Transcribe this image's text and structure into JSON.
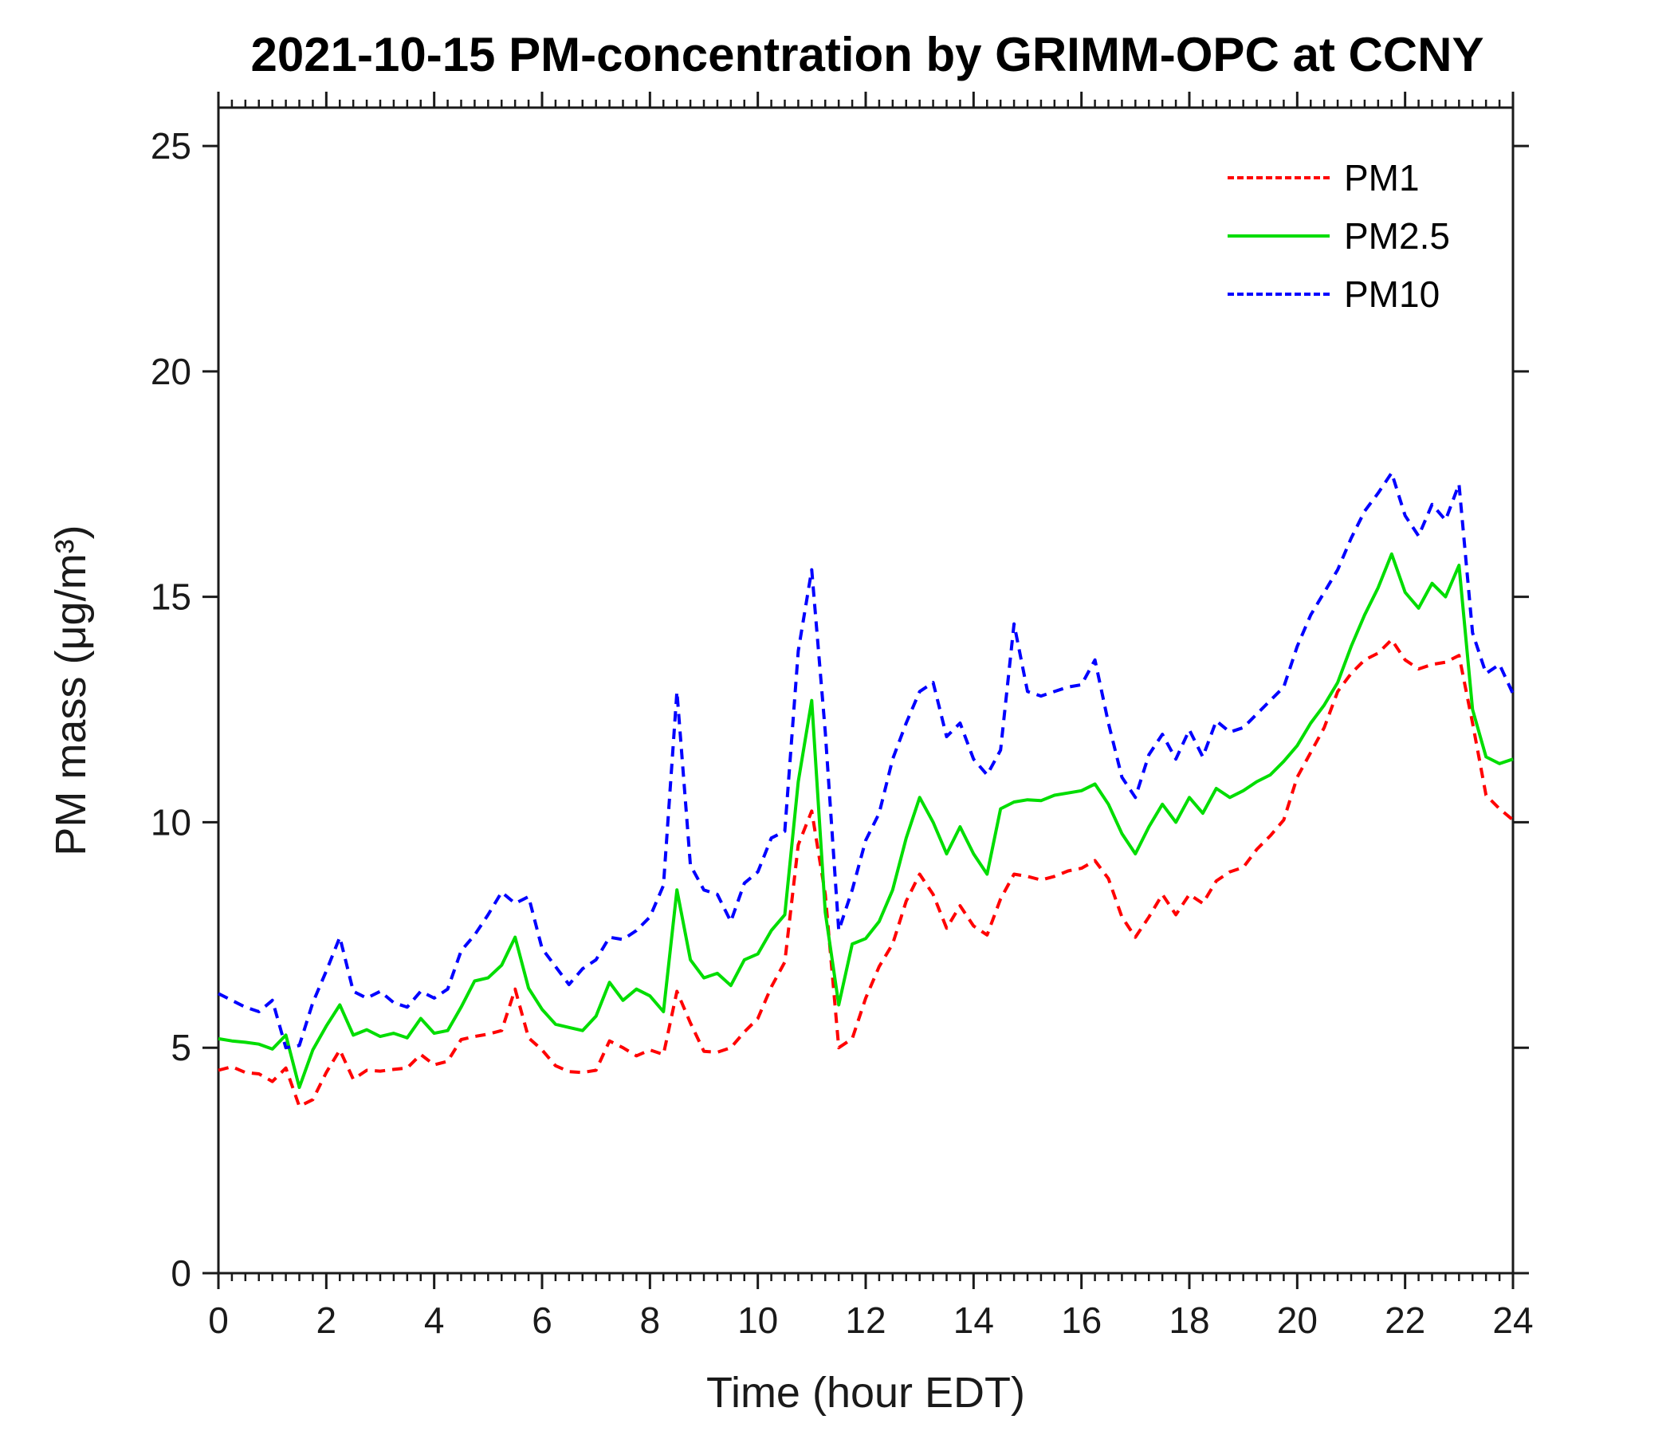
{
  "chart_data": {
    "type": "line",
    "title": "2021-10-15 PM-concentration by GRIMM-OPC at CCNY",
    "xlabel": "Time (hour EDT)",
    "ylabel": "PM mass (μg/m³)",
    "xlim": [
      0,
      24
    ],
    "ylim": [
      0,
      25.85
    ],
    "xticks": [
      0,
      2,
      4,
      6,
      8,
      10,
      12,
      14,
      16,
      18,
      20,
      22,
      24
    ],
    "yticks": [
      0,
      5,
      10,
      15,
      20,
      25
    ],
    "x_minor_tick_step": 0.25,
    "y_minor_ticks": false,
    "grid": false,
    "legend_position": "northeast",
    "background_color": "#ffffff",
    "axis_color": "#1a1a1a",
    "x_start": 0,
    "x_step": 0.25,
    "x_unit": "hour",
    "y_unit": "μg/m³",
    "series": [
      {
        "name": "PM1",
        "color": "#ff0000",
        "style": "dashed",
        "values": [
          4.5,
          4.58,
          4.45,
          4.42,
          4.25,
          4.55,
          3.7,
          3.85,
          4.45,
          4.95,
          4.3,
          4.5,
          4.48,
          4.52,
          4.55,
          4.85,
          4.62,
          4.7,
          5.18,
          5.25,
          5.3,
          5.38,
          6.3,
          5.22,
          4.95,
          4.6,
          4.47,
          4.45,
          4.5,
          5.15,
          5.0,
          4.82,
          4.95,
          4.85,
          6.25,
          5.55,
          4.92,
          4.9,
          5.0,
          5.35,
          5.65,
          6.35,
          6.9,
          9.5,
          10.25,
          8.4,
          5.0,
          5.2,
          6.1,
          6.8,
          7.3,
          8.25,
          8.85,
          8.4,
          7.65,
          8.15,
          7.7,
          7.5,
          8.3,
          8.85,
          8.8,
          8.72,
          8.8,
          8.92,
          8.98,
          9.15,
          8.75,
          7.9,
          7.45,
          7.9,
          8.4,
          7.95,
          8.4,
          8.2,
          8.7,
          8.9,
          9.0,
          9.4,
          9.7,
          10.05,
          11.0,
          11.55,
          12.1,
          12.9,
          13.3,
          13.6,
          13.75,
          14.05,
          13.6,
          13.4,
          13.5,
          13.55,
          13.7,
          12.2,
          10.6,
          10.3,
          10.05
        ]
      },
      {
        "name": "PM2.5",
        "color": "#00dd00",
        "style": "solid",
        "values": [
          5.2,
          5.15,
          5.12,
          5.08,
          4.97,
          5.28,
          4.12,
          4.95,
          5.48,
          5.95,
          5.28,
          5.4,
          5.25,
          5.32,
          5.22,
          5.65,
          5.32,
          5.38,
          5.9,
          6.48,
          6.55,
          6.83,
          7.45,
          6.32,
          5.85,
          5.52,
          5.45,
          5.38,
          5.7,
          6.45,
          6.05,
          6.3,
          6.15,
          5.8,
          8.5,
          6.95,
          6.55,
          6.65,
          6.38,
          6.95,
          7.08,
          7.6,
          7.95,
          10.9,
          12.7,
          8.0,
          5.95,
          7.3,
          7.42,
          7.8,
          8.5,
          9.65,
          10.55,
          10.0,
          9.3,
          9.9,
          9.3,
          8.85,
          10.3,
          10.45,
          10.5,
          10.48,
          10.6,
          10.65,
          10.7,
          10.85,
          10.4,
          9.75,
          9.3,
          9.9,
          10.4,
          10.0,
          10.55,
          10.2,
          10.75,
          10.55,
          10.7,
          10.9,
          11.05,
          11.35,
          11.7,
          12.2,
          12.6,
          13.1,
          13.9,
          14.6,
          15.2,
          15.95,
          15.1,
          14.75,
          15.3,
          15.0,
          15.7,
          12.5,
          11.45,
          11.3,
          11.4
        ]
      },
      {
        "name": "PM10",
        "color": "#0000ff",
        "style": "dashed",
        "values": [
          6.2,
          6.05,
          5.9,
          5.8,
          6.05,
          5.0,
          5.05,
          6.0,
          6.7,
          7.45,
          6.25,
          6.1,
          6.25,
          6.0,
          5.9,
          6.25,
          6.1,
          6.3,
          7.15,
          7.5,
          7.95,
          8.45,
          8.2,
          8.35,
          7.2,
          6.8,
          6.4,
          6.75,
          6.95,
          7.45,
          7.4,
          7.6,
          7.9,
          8.6,
          12.9,
          9.05,
          8.5,
          8.4,
          7.8,
          8.65,
          8.9,
          9.65,
          9.8,
          13.8,
          15.6,
          12.0,
          7.6,
          8.5,
          9.6,
          10.2,
          11.4,
          12.2,
          12.9,
          13.1,
          11.9,
          12.2,
          11.4,
          11.05,
          11.6,
          14.4,
          12.9,
          12.8,
          12.9,
          13.0,
          13.05,
          13.6,
          12.2,
          11.0,
          10.55,
          11.5,
          11.95,
          11.4,
          12.05,
          11.45,
          12.25,
          12.0,
          12.1,
          12.4,
          12.7,
          13.0,
          13.9,
          14.6,
          15.1,
          15.6,
          16.3,
          16.9,
          17.3,
          17.75,
          16.8,
          16.35,
          17.05,
          16.7,
          17.5,
          14.2,
          13.3,
          13.5,
          12.85
        ]
      }
    ]
  }
}
